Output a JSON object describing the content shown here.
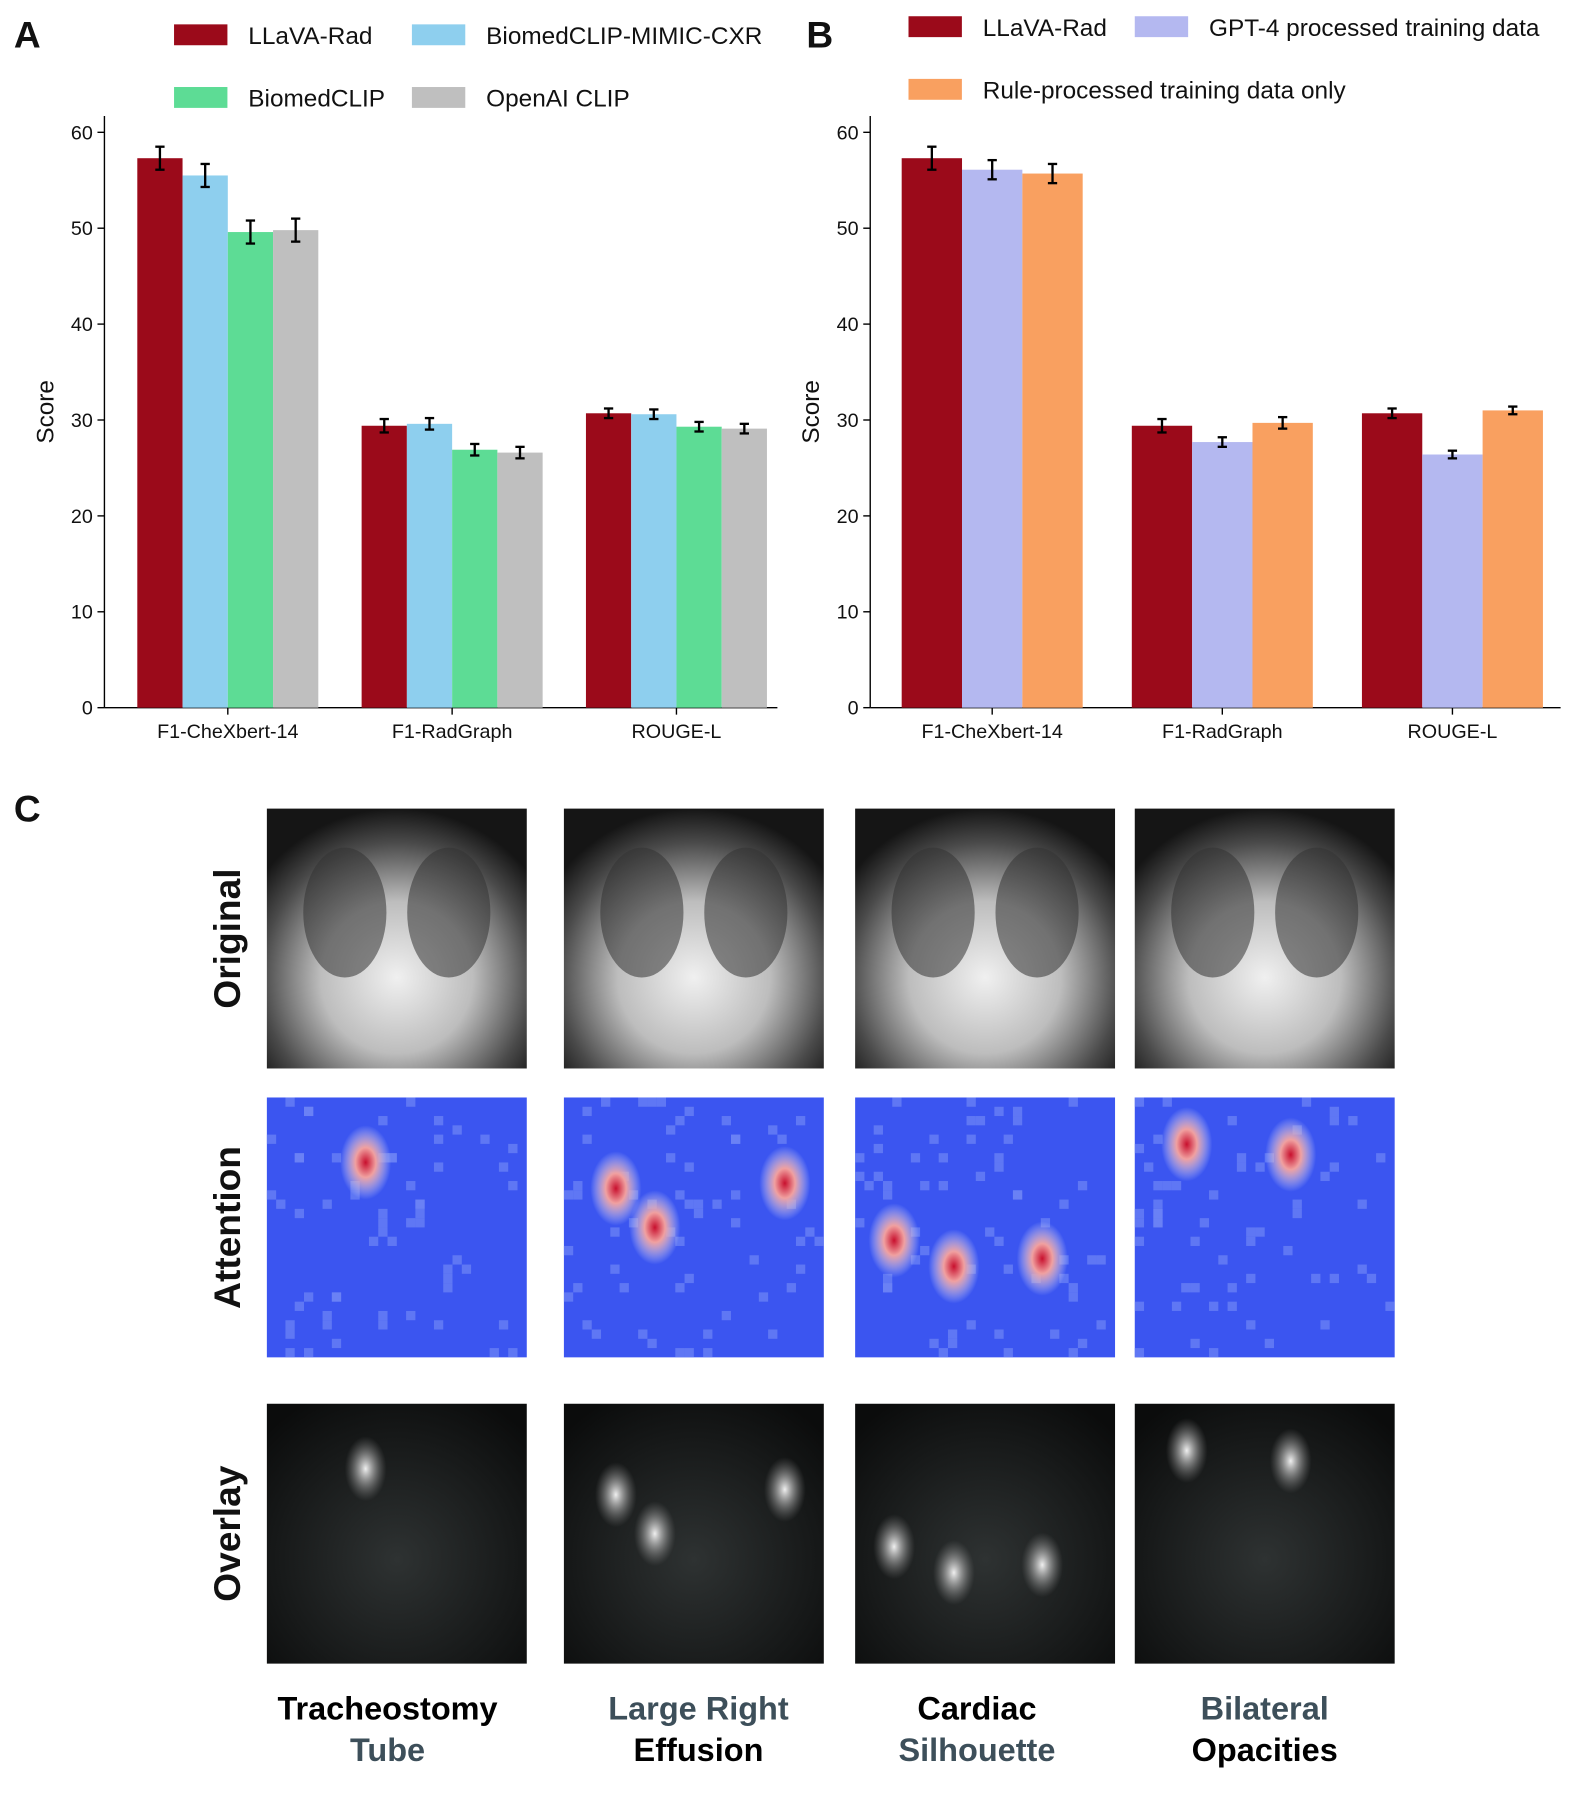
{
  "chart_data": [
    {
      "type": "bar",
      "panel": "A",
      "ylabel": "Score",
      "categories": [
        "F1-CheXbert-14",
        "F1-RadGraph",
        "ROUGE-L"
      ],
      "series": [
        {
          "name": "LLaVA-Rad",
          "color": "#9b0a1a",
          "values": [
            57.3,
            29.4,
            30.7
          ],
          "errors": [
            1.2,
            0.7,
            0.5
          ]
        },
        {
          "name": "BiomedCLIP-MIMIC-CXR",
          "color": "#8ecfee",
          "values": [
            55.5,
            29.6,
            30.6
          ],
          "errors": [
            1.2,
            0.6,
            0.5
          ]
        },
        {
          "name": "BiomedCLIP",
          "color": "#5ddc95",
          "values": [
            49.6,
            26.9,
            29.3
          ],
          "errors": [
            1.2,
            0.6,
            0.5
          ]
        },
        {
          "name": "OpenAI CLIP",
          "color": "#bfbfbf",
          "values": [
            49.8,
            26.6,
            29.1
          ],
          "errors": [
            1.2,
            0.6,
            0.5
          ]
        }
      ],
      "ylim": [
        0,
        61.7
      ],
      "yticks": [
        0,
        10,
        20,
        30,
        40,
        50,
        60
      ]
    },
    {
      "type": "bar",
      "panel": "B",
      "ylabel": "Score",
      "categories": [
        "F1-CheXbert-14",
        "F1-RadGraph",
        "ROUGE-L"
      ],
      "series": [
        {
          "name": "LLaVA-Rad",
          "color": "#9b0a1a",
          "values": [
            57.3,
            29.4,
            30.7
          ],
          "errors": [
            1.2,
            0.7,
            0.5
          ]
        },
        {
          "name": "GPT-4 processed training data",
          "color": "#b4b8f0",
          "values": [
            56.1,
            27.7,
            26.4
          ],
          "errors": [
            1.0,
            0.5,
            0.4
          ]
        },
        {
          "name": "Rule-processed training data only",
          "color": "#f9a060",
          "values": [
            55.7,
            29.7,
            31.0
          ],
          "errors": [
            1.0,
            0.6,
            0.4
          ]
        }
      ],
      "ylim": [
        0,
        61.7
      ],
      "yticks": [
        0,
        10,
        20,
        30,
        40,
        50,
        60
      ]
    }
  ],
  "panel_c": {
    "label": "C",
    "rows": [
      "Original",
      "Attention",
      "Overlay"
    ],
    "columns": [
      [
        "Tracheostomy",
        "Tube"
      ],
      [
        "Large Right",
        "Effusion"
      ],
      [
        "Cardiac",
        "Silhouette"
      ],
      [
        "Bilateral",
        "Opacities"
      ]
    ]
  }
}
